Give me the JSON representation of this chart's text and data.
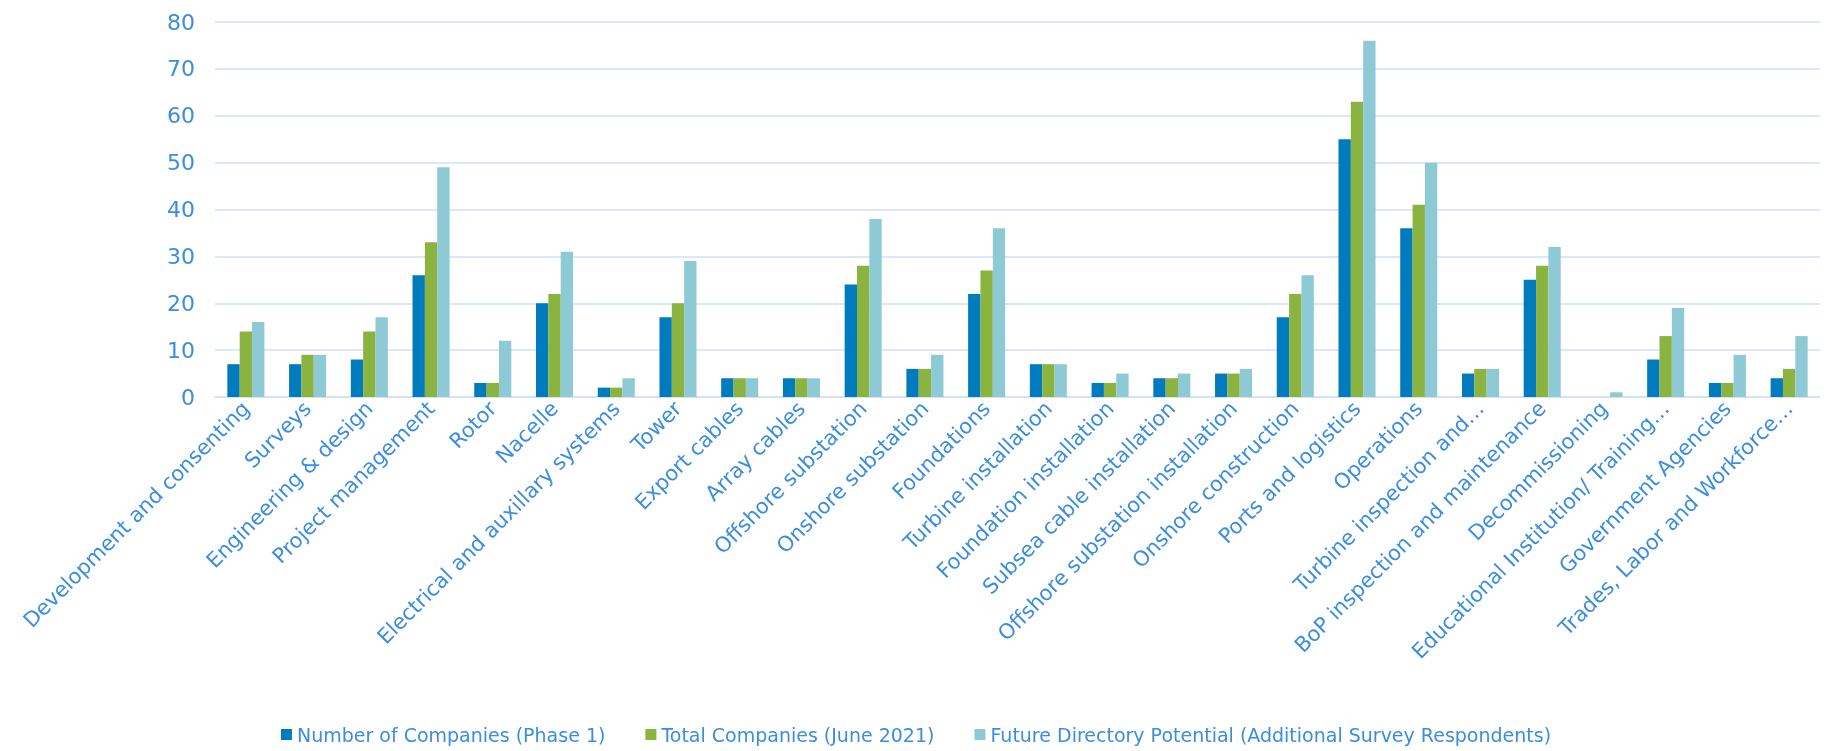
{
  "chart_data": {
    "type": "bar",
    "categories": [
      "Development and consenting",
      "Surveys",
      "Engineering & design",
      "Project management",
      "Rotor",
      "Nacelle",
      "Electrical and auxillary systems",
      "Tower",
      "Export cables",
      "Array cables",
      "Offshore substation",
      "Onshore substation",
      "Foundations",
      "Turbine installation",
      "Foundation installation",
      "Subsea cable installation",
      "Offshore substation installation",
      "Onshore construction",
      "Ports and logistics",
      "Operations",
      "Turbine inspection and…",
      "BoP inspection and maintenance",
      "Decommissioning",
      "Educational Institution/ Training…",
      "Government Agencies",
      "Trades, Labor and Workforce…"
    ],
    "series": [
      {
        "name": "Number of Companies (Phase 1)",
        "color": "#007bbd",
        "values": [
          7,
          7,
          8,
          26,
          3,
          20,
          2,
          17,
          4,
          4,
          24,
          6,
          22,
          7,
          3,
          4,
          5,
          17,
          55,
          36,
          5,
          25,
          0,
          8,
          3,
          4
        ]
      },
      {
        "name": "Total Companies (June 2021)",
        "color": "#8bb33f",
        "values": [
          14,
          9,
          14,
          33,
          3,
          22,
          2,
          20,
          4,
          4,
          28,
          6,
          27,
          7,
          3,
          4,
          5,
          22,
          63,
          41,
          6,
          28,
          0,
          13,
          3,
          6
        ]
      },
      {
        "name": "Future Directory Potential (Additional Survey Respondents)",
        "color": "#8ecad6",
        "values": [
          16,
          9,
          17,
          49,
          12,
          31,
          4,
          29,
          4,
          4,
          38,
          9,
          36,
          7,
          5,
          5,
          6,
          26,
          76,
          50,
          6,
          32,
          1,
          19,
          9,
          13
        ]
      }
    ],
    "ylim": [
      0,
      80
    ],
    "yticks": [
      0,
      10,
      20,
      30,
      40,
      50,
      60,
      70,
      80
    ],
    "grid": "y",
    "legend": "bottom"
  }
}
